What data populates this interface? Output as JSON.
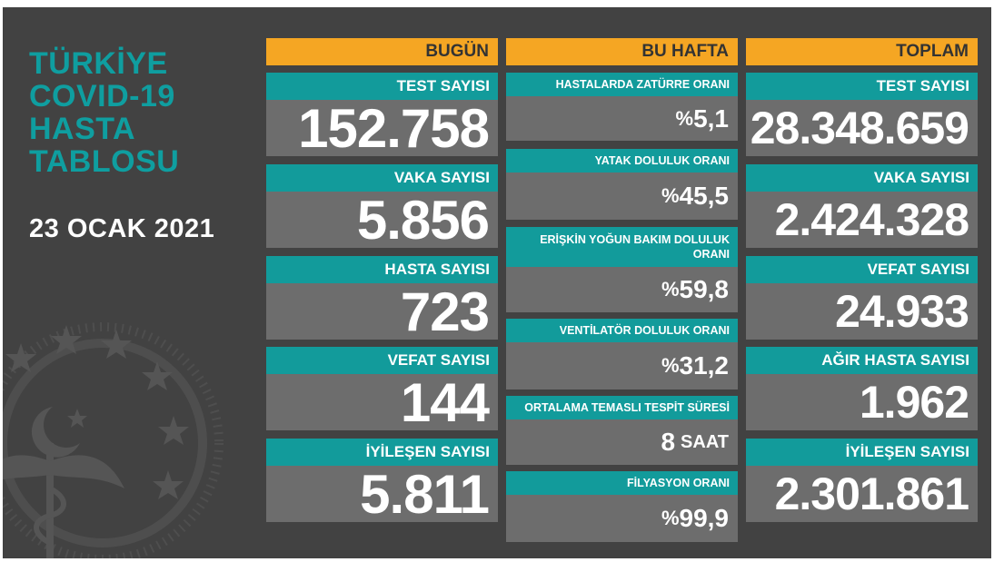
{
  "title_lines": [
    "TÜRKİYE",
    "COVID-19",
    "HASTA",
    "TABLOSU"
  ],
  "date": "23 OCAK 2021",
  "colors": {
    "background": "#424242",
    "header": "#f5a623",
    "label": "#129b9b",
    "value_box": "#6d6d6d",
    "title": "#0f9ea0"
  },
  "columns": {
    "today": {
      "header": "BUGÜN",
      "cards": [
        {
          "label": "TEST SAYISI",
          "value": "152.758"
        },
        {
          "label": "VAKA SAYISI",
          "value": "5.856"
        },
        {
          "label": "HASTA SAYISI",
          "value": "723"
        },
        {
          "label": "VEFAT SAYISI",
          "value": "144"
        },
        {
          "label": "İYİLEŞEN SAYISI",
          "value": "5.811"
        }
      ]
    },
    "week": {
      "header": "BU HAFTA",
      "cards": [
        {
          "label": "HASTALARDA ZATÜRRE ORANI",
          "prefix": "%",
          "value": "5,1"
        },
        {
          "label": "YATAK DOLULUK ORANI",
          "prefix": "%",
          "value": "45,5"
        },
        {
          "label_line1": "ERİŞKİN YOĞUN BAKIM DOLULUK",
          "label_line2": "ORANI",
          "prefix": "%",
          "value": "59,8"
        },
        {
          "label": "VENTİLATÖR DOLULUK ORANI",
          "prefix": "%",
          "value": "31,2"
        },
        {
          "label": "ORTALAMA TEMASLI TESPİT SÜRESİ",
          "value": "8",
          "unit": "SAAT"
        },
        {
          "label": "FİLYASYON ORANI",
          "prefix": "%",
          "value": "99,9"
        }
      ]
    },
    "total": {
      "header": "TOPLAM",
      "cards": [
        {
          "label": "TEST SAYISI",
          "value": "28.348.659"
        },
        {
          "label": "VAKA SAYISI",
          "value": "2.424.328"
        },
        {
          "label": "VEFAT SAYISI",
          "value": "24.933"
        },
        {
          "label": "AĞIR HASTA SAYISI",
          "value": "1.962"
        },
        {
          "label": "İYİLEŞEN SAYISI",
          "value": "2.301.861"
        }
      ]
    }
  }
}
